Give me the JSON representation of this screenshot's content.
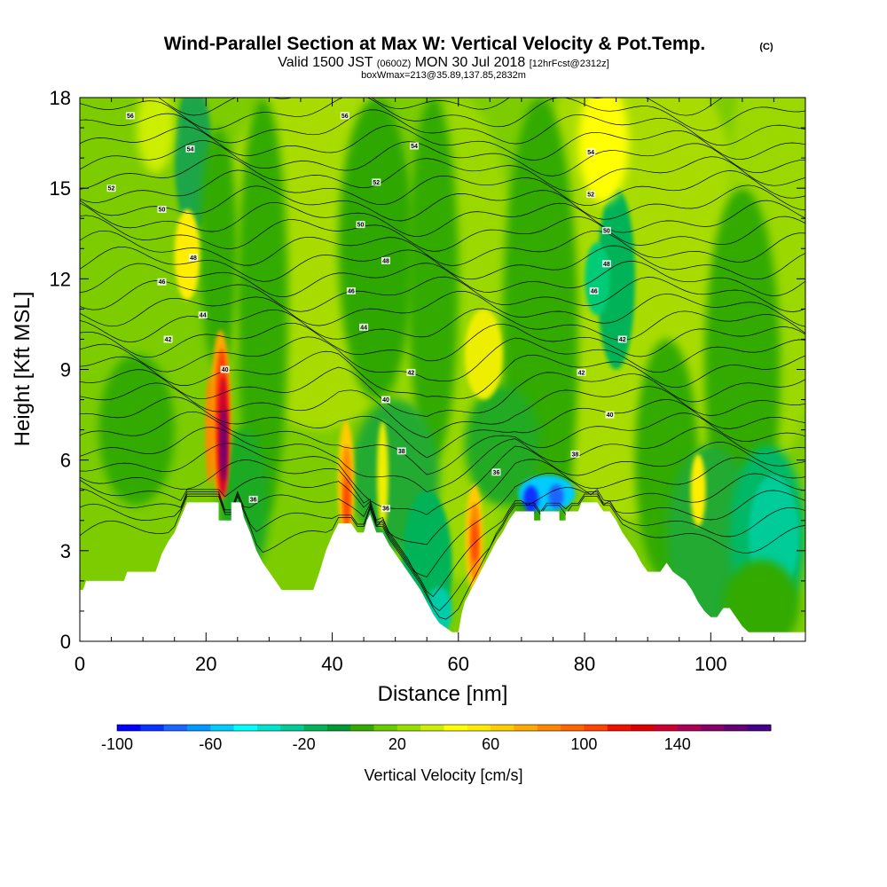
{
  "chart_data": {
    "type": "heatmap",
    "title": "Wind-Parallel Section at Max W: Vertical Velocity & Pot.Temp.",
    "title_mark": "(C)",
    "subtitle_prefix": "Valid 1500 JST",
    "subtitle_small_1": "(0600Z)",
    "subtitle_main": "MON 30 Jul 2018",
    "subtitle_small_2": "[12hrFcst@2312z]",
    "subtitle_line2": "boxWmax=213@35.89,137.85,2832m",
    "xlabel": "Distance [nm]",
    "ylabel": "Height [Kft MSL]",
    "xlim": [
      0,
      115
    ],
    "ylim": [
      0,
      18
    ],
    "xticks": [
      "0",
      "20",
      "40",
      "60",
      "80",
      "100"
    ],
    "yticks": [
      "0",
      "3",
      "6",
      "9",
      "12",
      "15",
      "18"
    ],
    "colorbar": {
      "label": "Vertical Velocity [cm/s]",
      "tick_labels": [
        "-100",
        "-60",
        "-20",
        "20",
        "60",
        "100",
        "140"
      ],
      "colors": [
        "#0000ff",
        "#0a33ff",
        "#1a66ff",
        "#0099ff",
        "#00ccff",
        "#00ffff",
        "#00e6cc",
        "#00cc99",
        "#00b359",
        "#009933",
        "#33aa00",
        "#66cc00",
        "#99dd00",
        "#ccee00",
        "#ffff00",
        "#ffee00",
        "#ffcc00",
        "#ffaa00",
        "#ff8800",
        "#ff6600",
        "#ff4400",
        "#ee1100",
        "#dd0000",
        "#cc0033",
        "#aa0055",
        "#880066",
        "#660077",
        "#440088"
      ]
    },
    "terrain_kft": [
      [
        0,
        1.7
      ],
      [
        0.5,
        1.7
      ],
      [
        1,
        2.0
      ],
      [
        7,
        2.0
      ],
      [
        7.5,
        2.3
      ],
      [
        12,
        2.3
      ],
      [
        12.5,
        2.6
      ],
      [
        13,
        2.9
      ],
      [
        14,
        3.3
      ],
      [
        15,
        3.6
      ],
      [
        16,
        4.1
      ],
      [
        17,
        4.6
      ],
      [
        22,
        4.6
      ],
      [
        22,
        4.0
      ],
      [
        24,
        4.0
      ],
      [
        24,
        4.6
      ],
      [
        25.5,
        4.6
      ],
      [
        26,
        4.1
      ],
      [
        27,
        3.6
      ],
      [
        28,
        3.0
      ],
      [
        29,
        2.6
      ],
      [
        30,
        2.3
      ],
      [
        31,
        2.0
      ],
      [
        32,
        1.7
      ],
      [
        37,
        1.7
      ],
      [
        38,
        2.3
      ],
      [
        39,
        3.0
      ],
      [
        40,
        3.5
      ],
      [
        41,
        3.9
      ],
      [
        43,
        3.9
      ],
      [
        44,
        3.6
      ],
      [
        45,
        3.6
      ],
      [
        45.5,
        4.0
      ],
      [
        46,
        4.2
      ],
      [
        47,
        3.6
      ],
      [
        48,
        3.6
      ],
      [
        49,
        3.2
      ],
      [
        50,
        2.9
      ],
      [
        51,
        2.6
      ],
      [
        52,
        2.3
      ],
      [
        53,
        2.0
      ],
      [
        54,
        1.7
      ],
      [
        55,
        1.3
      ],
      [
        56,
        0.9
      ],
      [
        57,
        0.6
      ],
      [
        59,
        0.3
      ],
      [
        60,
        0.3
      ],
      [
        60.5,
        0.9
      ],
      [
        61,
        1.3
      ],
      [
        62,
        1.7
      ],
      [
        63,
        2.1
      ],
      [
        64,
        2.5
      ],
      [
        65,
        2.9
      ],
      [
        66,
        3.3
      ],
      [
        67,
        3.6
      ],
      [
        68,
        4.0
      ],
      [
        69,
        4.3
      ],
      [
        72,
        4.3
      ],
      [
        72,
        4.0
      ],
      [
        73,
        4.0
      ],
      [
        73,
        4.3
      ],
      [
        76,
        4.3
      ],
      [
        76,
        4.0
      ],
      [
        77,
        4.0
      ],
      [
        77,
        4.3
      ],
      [
        79,
        4.3
      ],
      [
        79.5,
        4.6
      ],
      [
        82,
        4.6
      ],
      [
        83,
        4.3
      ],
      [
        84,
        4.3
      ],
      [
        85,
        4.0
      ],
      [
        86,
        3.6
      ],
      [
        87,
        3.3
      ],
      [
        88,
        3.0
      ],
      [
        89,
        2.6
      ],
      [
        90,
        2.3
      ],
      [
        92,
        2.3
      ],
      [
        93,
        2.6
      ],
      [
        94,
        2.3
      ],
      [
        96,
        2.0
      ],
      [
        97,
        1.7
      ],
      [
        98,
        1.3
      ],
      [
        99,
        1.0
      ],
      [
        100,
        0.8
      ],
      [
        101,
        0.8
      ],
      [
        102,
        1.1
      ],
      [
        103,
        1.1
      ],
      [
        104,
        0.8
      ],
      [
        105,
        0.5
      ],
      [
        106,
        0.3
      ],
      [
        115,
        0.3
      ]
    ],
    "wmax_cm_s": 213,
    "potential_temperature_labels": [
      "56",
      "54",
      "52",
      "50",
      "48",
      "46",
      "44",
      "42",
      "40",
      "38",
      "36"
    ]
  }
}
